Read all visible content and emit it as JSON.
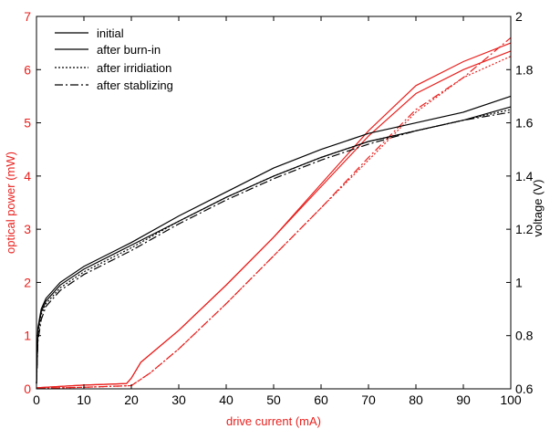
{
  "chart_data": {
    "type": "line",
    "x_axis": {
      "label": "drive current (mA)",
      "range": [
        0,
        100
      ],
      "ticks": [
        "0",
        "10",
        "20",
        "30",
        "40",
        "50",
        "60",
        "70",
        "80",
        "90",
        "100"
      ],
      "color": "#e8211e"
    },
    "y_left": {
      "label": "optical power (mW)",
      "range": [
        0,
        7
      ],
      "ticks": [
        "0",
        "1",
        "2",
        "3",
        "4",
        "5",
        "6",
        "7"
      ],
      "color": "#e8211e"
    },
    "y_right": {
      "label": "voltage (V)",
      "range": [
        0.6,
        2
      ],
      "ticks": [
        "0.6",
        "0.8",
        "1",
        "1.2",
        "1.4",
        "1.6",
        "1.8",
        "2"
      ],
      "color": "#000000"
    },
    "legend": {
      "placement": "top-left",
      "entries": [
        {
          "label": "initial",
          "dash": "solid"
        },
        {
          "label": "after burn-in",
          "dash": "solid"
        },
        {
          "label": "after irridiation",
          "dash": "dotted"
        },
        {
          "label": "after stablizing",
          "dash": "dashdot"
        }
      ]
    },
    "colors": {
      "power": "#e8211e",
      "voltage": "#000000"
    },
    "series": [
      {
        "quantity": "optical power",
        "axis": "left",
        "dash": "solid",
        "x": [
          0,
          10,
          19,
          20,
          22,
          30,
          40,
          50,
          60,
          70,
          80,
          90,
          100
        ],
        "y": [
          0.02,
          0.07,
          0.1,
          0.2,
          0.5,
          1.1,
          1.95,
          2.85,
          3.85,
          4.85,
          5.7,
          6.15,
          6.5
        ]
      },
      {
        "quantity": "optical power",
        "axis": "left",
        "dash": "solid",
        "x": [
          0,
          10,
          19,
          20,
          22,
          30,
          40,
          50,
          60,
          70,
          80,
          90,
          100
        ],
        "y": [
          0.02,
          0.07,
          0.1,
          0.2,
          0.5,
          1.1,
          1.95,
          2.85,
          3.8,
          4.75,
          5.55,
          6.0,
          6.35
        ]
      },
      {
        "quantity": "optical power",
        "axis": "left",
        "dash": "dotted",
        "x": [
          0,
          10,
          20,
          24,
          30,
          40,
          50,
          60,
          70,
          80,
          90,
          100
        ],
        "y": [
          0.01,
          0.03,
          0.06,
          0.3,
          0.75,
          1.6,
          2.5,
          3.4,
          4.3,
          5.2,
          5.85,
          6.25
        ]
      },
      {
        "quantity": "optical power",
        "axis": "left",
        "dash": "dashdot",
        "x": [
          0,
          10,
          20,
          24,
          30,
          40,
          50,
          60,
          70,
          80,
          90,
          100
        ],
        "y": [
          0.01,
          0.03,
          0.06,
          0.3,
          0.75,
          1.6,
          2.5,
          3.4,
          4.35,
          5.25,
          5.85,
          6.6
        ]
      },
      {
        "quantity": "voltage",
        "axis": "right",
        "dash": "solid",
        "x": [
          0,
          0.3,
          1,
          2,
          5,
          10,
          20,
          30,
          40,
          50,
          60,
          70,
          80,
          90,
          100
        ],
        "y": [
          0.62,
          0.83,
          0.9,
          0.94,
          1.0,
          1.06,
          1.15,
          1.25,
          1.34,
          1.43,
          1.5,
          1.56,
          1.6,
          1.64,
          1.7
        ]
      },
      {
        "quantity": "voltage",
        "axis": "right",
        "dash": "solid",
        "x": [
          0,
          0.3,
          1,
          2,
          5,
          10,
          20,
          30,
          40,
          50,
          60,
          70,
          80,
          90,
          100
        ],
        "y": [
          0.62,
          0.82,
          0.89,
          0.93,
          0.99,
          1.05,
          1.14,
          1.23,
          1.32,
          1.4,
          1.47,
          1.53,
          1.57,
          1.61,
          1.66
        ]
      },
      {
        "quantity": "voltage",
        "axis": "right",
        "dash": "dotted",
        "x": [
          0,
          0.3,
          1,
          2,
          5,
          10,
          20,
          30,
          40,
          50,
          60,
          70,
          80,
          90,
          100
        ],
        "y": [
          0.62,
          0.8,
          0.88,
          0.92,
          0.98,
          1.04,
          1.13,
          1.23,
          1.32,
          1.4,
          1.47,
          1.53,
          1.57,
          1.61,
          1.65
        ]
      },
      {
        "quantity": "voltage",
        "axis": "right",
        "dash": "dashdot",
        "x": [
          0,
          0.3,
          1,
          2,
          5,
          10,
          20,
          30,
          40,
          50,
          60,
          70,
          80,
          90,
          100
        ],
        "y": [
          0.62,
          0.78,
          0.86,
          0.91,
          0.97,
          1.03,
          1.12,
          1.22,
          1.31,
          1.39,
          1.46,
          1.52,
          1.57,
          1.61,
          1.64
        ]
      }
    ]
  }
}
